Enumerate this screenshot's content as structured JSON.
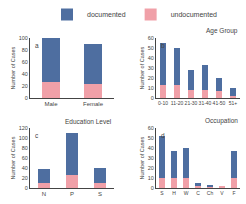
{
  "chart_data": [
    {
      "type": "bar",
      "stacked": true,
      "grid": false,
      "legend": "top",
      "annotations": [
        "a"
      ],
      "ylabel": "Number of Cases",
      "categories": [
        "Male",
        "Female"
      ],
      "series": [
        {
          "name": "undocumented",
          "color": "#f0a0a8",
          "values": [
            27,
            23
          ]
        },
        {
          "name": "documented",
          "color": "#4e6ea0",
          "values": [
            73,
            67
          ]
        }
      ],
      "ylim": [
        0,
        100
      ],
      "yticks": [
        0,
        20,
        40,
        60,
        80,
        100
      ]
    },
    {
      "type": "bar",
      "stacked": true,
      "grid": false,
      "title": "Age Group",
      "annotations": [
        "b"
      ],
      "ylabel": "Number of Cases",
      "categories": [
        "0-10",
        "11-20",
        "21-30",
        "31-40",
        "41-50",
        "51+"
      ],
      "series": [
        {
          "name": "undocumented",
          "color": "#f0a0a8",
          "values": [
            13,
            13,
            8,
            8,
            7,
            2
          ]
        },
        {
          "name": "documented",
          "color": "#4e6ea0",
          "values": [
            42,
            37,
            20,
            25,
            13,
            8
          ]
        }
      ],
      "ylim": [
        0,
        60
      ],
      "yticks": [
        0,
        10,
        20,
        30,
        40,
        50,
        60
      ]
    },
    {
      "type": "bar",
      "stacked": true,
      "grid": false,
      "title": "Education Level",
      "annotations": [
        "c"
      ],
      "ylabel": "Number of Cases",
      "categories": [
        "N",
        "P",
        "S"
      ],
      "series": [
        {
          "name": "undocumented",
          "color": "#f0a0a8",
          "values": [
            10,
            27,
            10
          ]
        },
        {
          "name": "documented",
          "color": "#4e6ea0",
          "values": [
            28,
            83,
            30
          ]
        }
      ],
      "ylim": [
        0,
        120
      ],
      "yticks": [
        0,
        20,
        40,
        60,
        80,
        100,
        120
      ]
    },
    {
      "type": "bar",
      "stacked": true,
      "grid": false,
      "title": "Occupation",
      "annotations": [
        "d"
      ],
      "ylabel": "Number of Cases",
      "categories": [
        "S",
        "H",
        "W",
        "C",
        "Ch",
        "V",
        "F"
      ],
      "series": [
        {
          "name": "undocumented",
          "color": "#f0a0a8",
          "values": [
            10,
            10,
            10,
            2,
            1,
            1,
            10
          ]
        },
        {
          "name": "documented",
          "color": "#4e6ea0",
          "values": [
            42,
            27,
            30,
            3,
            1,
            0,
            27
          ]
        }
      ],
      "ylim": [
        0,
        60
      ],
      "yticks": [
        0,
        10,
        20,
        30,
        40,
        50,
        60
      ]
    }
  ]
}
